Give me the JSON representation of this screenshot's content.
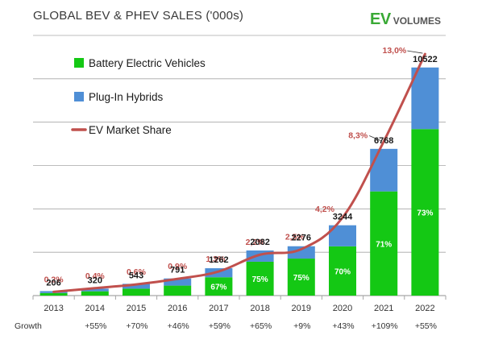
{
  "title": "GLOBAL BEV & PHEV SALES ('000s)",
  "brand": {
    "ev": "EV",
    "rest": "VOLUMES"
  },
  "colors": {
    "bev": "#14c814",
    "phev": "#4f8fd6",
    "share_line": "#c0504d",
    "share_label": "#c0504d",
    "grid": "#a6a6a6",
    "brand_green": "#39a935"
  },
  "chart_data": {
    "type": "bar",
    "stacked": true,
    "categories": [
      "2013",
      "2014",
      "2015",
      "2016",
      "2017",
      "2018",
      "2019",
      "2020",
      "2021",
      "2022"
    ],
    "series": [
      {
        "name": "Battery Electric Vehicles",
        "values": [
          118,
          198,
          319,
          461,
          846,
          1562,
          1707,
          2271,
          4805,
          7681
        ]
      },
      {
        "name": "Plug-In Hybrids",
        "values": [
          88,
          122,
          224,
          330,
          416,
          520,
          569,
          973,
          1963,
          2841
        ]
      }
    ],
    "totals": [
      "206",
      "320",
      "543",
      "791",
      "1262",
      "2082",
      "2276",
      "3244",
      "6768",
      "10522"
    ],
    "bev_share_labels": [
      "",
      "",
      "",
      "",
      "67%",
      "75%",
      "75%",
      "70%",
      "71%",
      "73%"
    ],
    "line_series": {
      "name": "EV Market Share",
      "values": [
        0.2,
        0.4,
        0.6,
        0.9,
        1.3,
        2.2,
        2.5,
        4.2,
        8.3,
        13.0
      ],
      "labels": [
        "0,2%",
        "0,4%",
        "0,6%",
        "0,9%",
        "1,3%",
        "2,2%",
        "2,5%",
        "4,2%",
        "8,3%",
        "13,0%"
      ]
    },
    "growth_label": "Growth",
    "growth": [
      "",
      "+55%",
      "+70%",
      "+46%",
      "+59%",
      "+65%",
      "+9%",
      "+43%",
      "+109%",
      "+55%"
    ],
    "ylim": [
      0,
      12000
    ],
    "share_ylim": [
      0,
      14
    ],
    "grid": true,
    "legend": "top-left"
  }
}
